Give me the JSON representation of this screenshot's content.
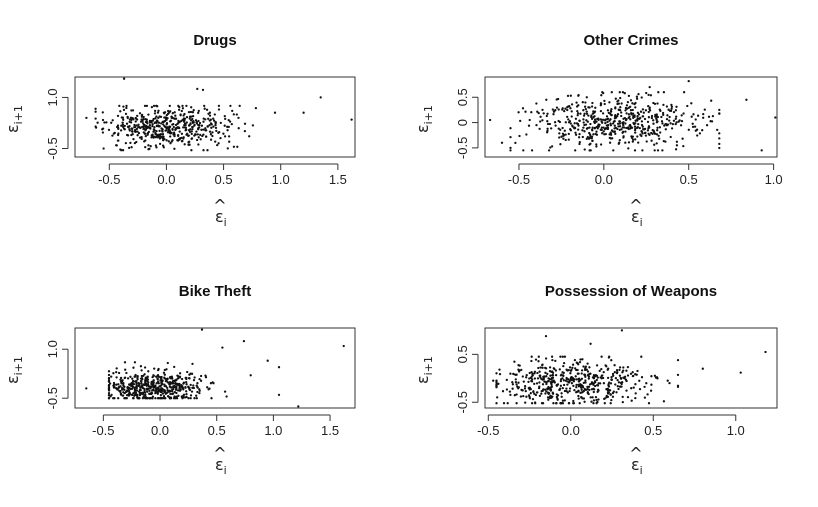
{
  "chart_data": [
    {
      "type": "scatter",
      "title": "Drugs",
      "xlabel": {
        "base": "ε",
        "hat": "^",
        "sub": "i"
      },
      "ylabel": {
        "base": "ε",
        "sub": "i+1"
      },
      "xlim": [
        -0.8,
        1.65
      ],
      "ylim": [
        -0.75,
        1.6
      ],
      "xticks": [
        -0.5,
        0.0,
        0.5,
        1.0,
        1.5
      ],
      "xtick_labels": [
        "-0.5",
        "0.0",
        "0.5",
        "1.0",
        "1.5"
      ],
      "yticks": [
        -0.5,
        1.0
      ],
      "ytick_labels": [
        "-0.5",
        "1.0"
      ],
      "seed": 11,
      "n_points": 520,
      "x_mean": 0.0,
      "x_sd": 0.27,
      "y_mean": 0.15,
      "y_sd": 0.3,
      "x_range": [
        -0.62,
        0.82
      ],
      "y_range": [
        -0.55,
        0.75
      ],
      "extra_points": [
        [
          -0.37,
          1.55
        ],
        [
          0.27,
          1.25
        ],
        [
          0.32,
          1.22
        ],
        [
          0.95,
          0.55
        ],
        [
          1.2,
          0.55
        ],
        [
          1.35,
          1.0
        ],
        [
          1.62,
          0.35
        ],
        [
          -0.7,
          0.4
        ],
        [
          -0.55,
          -0.5
        ]
      ]
    },
    {
      "type": "scatter",
      "title": "Other Crimes",
      "xlabel": {
        "base": "ε",
        "hat": "^",
        "sub": "i"
      },
      "ylabel": {
        "base": "ε",
        "sub": "i+1"
      },
      "xlim": [
        -0.7,
        1.02
      ],
      "ylim": [
        -0.68,
        0.9
      ],
      "xticks": [
        -0.5,
        0.0,
        0.5,
        1.0
      ],
      "xtick_labels": [
        "-0.5",
        "0.0",
        "0.5",
        "1.0"
      ],
      "yticks": [
        -0.5,
        0.0,
        0.5
      ],
      "ytick_labels": [
        "-0.5",
        "0",
        "0.5"
      ],
      "seed": 23,
      "n_points": 560,
      "x_mean": 0.05,
      "x_sd": 0.24,
      "y_mean": 0.0,
      "y_sd": 0.26,
      "x_range": [
        -0.55,
        0.68
      ],
      "y_range": [
        -0.55,
        0.6
      ],
      "extra_points": [
        [
          0.27,
          0.7
        ],
        [
          0.5,
          0.82
        ],
        [
          0.84,
          0.45
        ],
        [
          0.93,
          -0.55
        ],
        [
          1.01,
          0.1
        ],
        [
          -0.67,
          0.05
        ],
        [
          -0.6,
          -0.4
        ],
        [
          0.68,
          0.25
        ]
      ]
    },
    {
      "type": "scatter",
      "title": "Bike Theft",
      "xlabel": {
        "base": "ε",
        "hat": "^",
        "sub": "i"
      },
      "ylabel": {
        "base": "ε",
        "sub": "i+1"
      },
      "xlim": [
        -0.75,
        1.72
      ],
      "ylim": [
        -0.8,
        1.65
      ],
      "xticks": [
        -0.5,
        0.0,
        0.5,
        1.0,
        1.5
      ],
      "xtick_labels": [
        "-0.5",
        "0.0",
        "0.5",
        "1.0",
        "1.5"
      ],
      "yticks": [
        -0.5,
        1.0
      ],
      "ytick_labels": [
        "-0.5",
        "1.0"
      ],
      "seed": 37,
      "n_points": 520,
      "x_mean": -0.05,
      "x_sd": 0.22,
      "y_mean": -0.15,
      "y_sd": 0.25,
      "x_range": [
        -0.45,
        0.62
      ],
      "y_range": [
        -0.5,
        0.6
      ],
      "extra_points": [
        [
          0.37,
          1.6
        ],
        [
          0.74,
          1.25
        ],
        [
          0.55,
          1.05
        ],
        [
          0.95,
          0.65
        ],
        [
          1.05,
          0.45
        ],
        [
          1.62,
          1.1
        ],
        [
          1.22,
          -0.75
        ],
        [
          1.05,
          -0.4
        ],
        [
          -0.65,
          -0.2
        ],
        [
          0.8,
          0.2
        ]
      ]
    },
    {
      "type": "scatter",
      "title": "Possession of Weapons",
      "xlabel": {
        "base": "ε",
        "hat": "^",
        "sub": "i"
      },
      "ylabel": {
        "base": "ε",
        "sub": "i+1"
      },
      "xlim": [
        -0.52,
        1.25
      ],
      "ylim": [
        -0.62,
        1.05
      ],
      "xticks": [
        -0.5,
        0.0,
        0.5,
        1.0
      ],
      "xtick_labels": [
        "-0.5",
        "0.0",
        "0.5",
        "1.0"
      ],
      "yticks": [
        -0.5,
        0.5
      ],
      "ytick_labels": [
        "-0.5",
        "0.5"
      ],
      "seed": 51,
      "n_points": 540,
      "x_mean": 0.0,
      "x_sd": 0.23,
      "y_mean": -0.12,
      "y_sd": 0.24,
      "x_range": [
        -0.45,
        0.65
      ],
      "y_range": [
        -0.52,
        0.45
      ],
      "extra_points": [
        [
          0.31,
          1.0
        ],
        [
          -0.15,
          0.88
        ],
        [
          0.8,
          0.2
        ],
        [
          1.03,
          0.12
        ],
        [
          1.18,
          0.55
        ],
        [
          -0.47,
          -0.05
        ],
        [
          0.65,
          0.38
        ],
        [
          0.12,
          0.72
        ]
      ]
    }
  ]
}
